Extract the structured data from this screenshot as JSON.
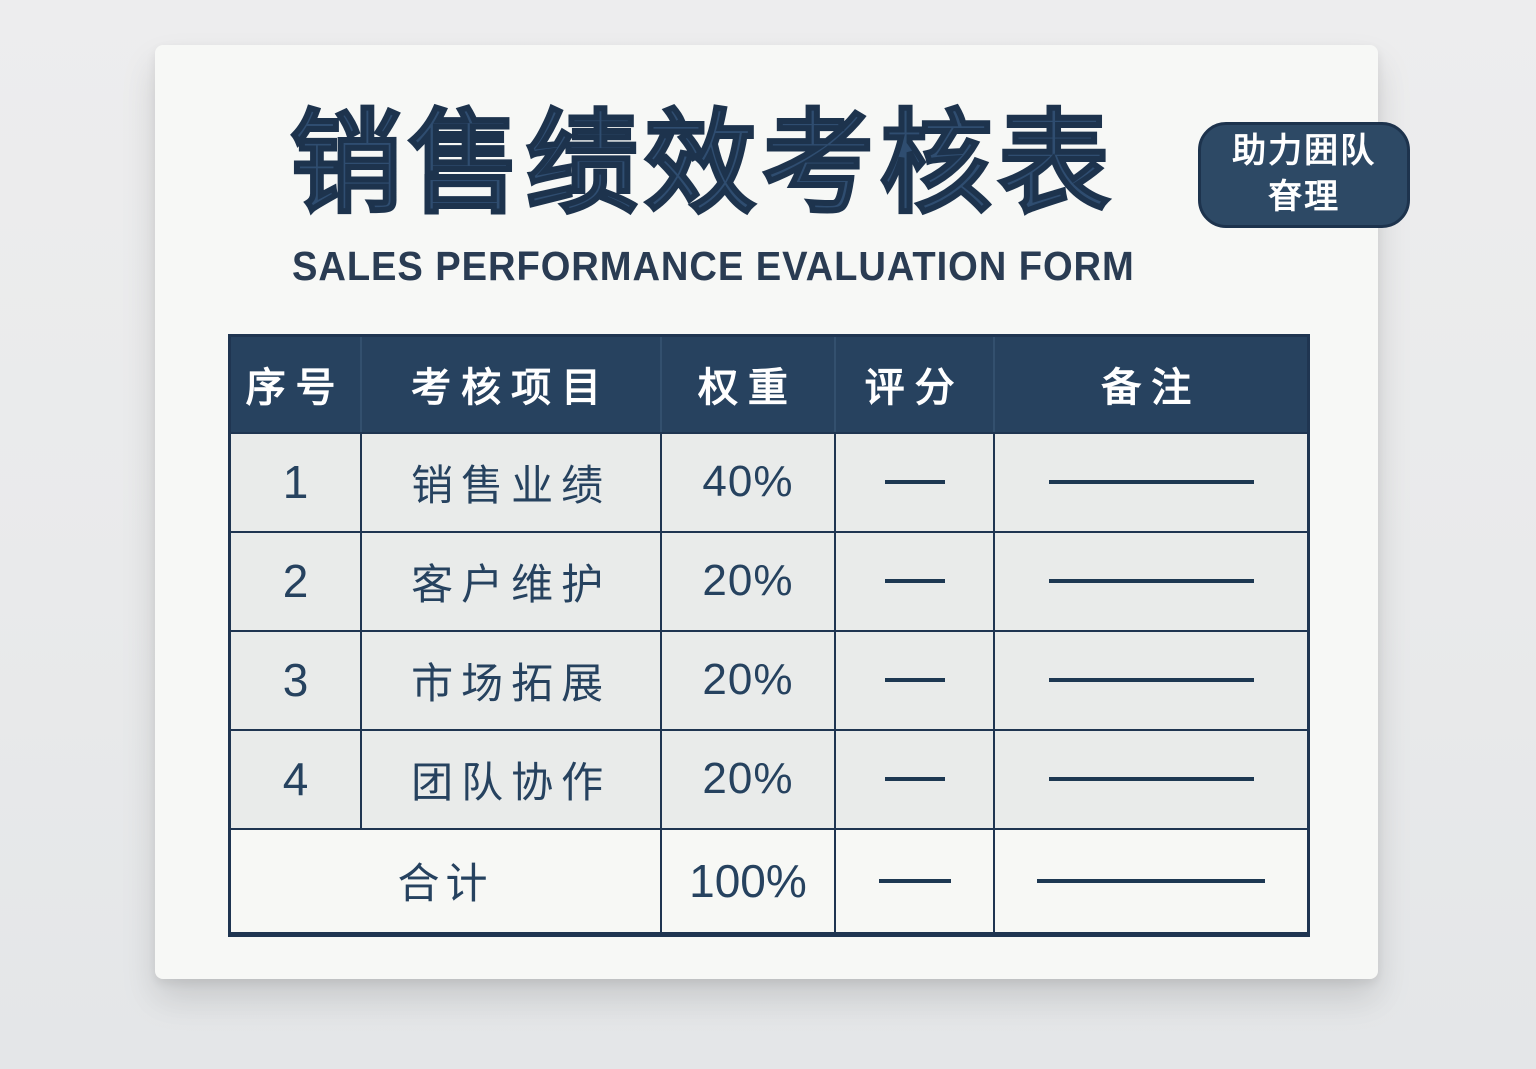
{
  "header": {
    "title_cn": "销售绩效考核表",
    "subtitle_en": "SALES PERFORMANCE EVALUATION FORM",
    "badge": {
      "line1": "助力囲队",
      "line2": "眘理"
    }
  },
  "table": {
    "headers": {
      "no": "序号",
      "item": "考核项目",
      "weight": "权重",
      "score": "评分",
      "remark": "备注"
    },
    "rows": [
      {
        "no": "1",
        "item": "销售业绩",
        "weight": "40%"
      },
      {
        "no": "2",
        "item": "客户维护",
        "weight": "20%"
      },
      {
        "no": "3",
        "item": "市场拓展",
        "weight": "20%"
      },
      {
        "no": "4",
        "item": "团队协作",
        "weight": "20%"
      }
    ],
    "footer": {
      "label": "合计",
      "weight": "100%"
    }
  },
  "colors": {
    "navy_title": "#2f4d70",
    "navy_header_bg": "#27425f",
    "navy_border": "#1f3551",
    "badge_bg": "#2d4965",
    "card_bg": "#f7f8f6",
    "row_bg": "#e9ebea",
    "footer_row_bg": "#f7f8f5",
    "page_bg": "#e9eaeb"
  }
}
